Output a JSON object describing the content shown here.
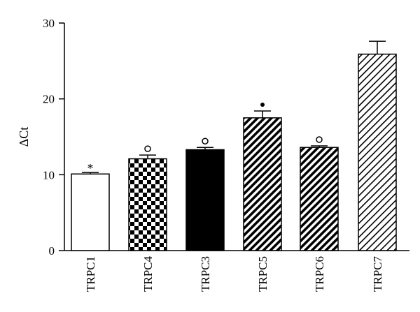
{
  "chart_data": {
    "type": "bar",
    "ylabel": "ΔCt",
    "ylim": [
      0,
      30
    ],
    "yticks": [
      0,
      10,
      20,
      30
    ],
    "categories": [
      "TRPC1",
      "TRPC4",
      "TRPC3",
      "TRPC5",
      "TRPC6",
      "TRPC7"
    ],
    "values": [
      10.1,
      12.1,
      13.3,
      17.5,
      13.6,
      25.9
    ],
    "errors": [
      0.2,
      0.5,
      0.3,
      0.9,
      0.2,
      1.7
    ],
    "annotations": [
      "*",
      "○",
      "○",
      "•",
      "○",
      ""
    ],
    "fills": [
      "white",
      "checker",
      "black",
      "diag-dense",
      "diag-dense",
      "diag-sparse"
    ],
    "grid": false,
    "legend": "none"
  }
}
